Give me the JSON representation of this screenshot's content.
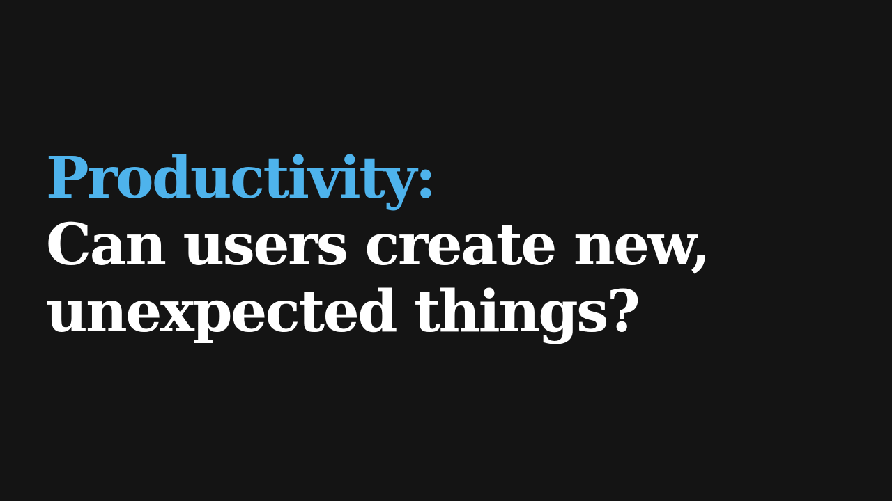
{
  "slide": {
    "heading": "Productivity:",
    "question_line_1": "Can users create new,",
    "question_line_2": "unexpected things?"
  },
  "colors": {
    "background": "#141414",
    "accent": "#4eb3ec",
    "text": "#ffffff"
  }
}
